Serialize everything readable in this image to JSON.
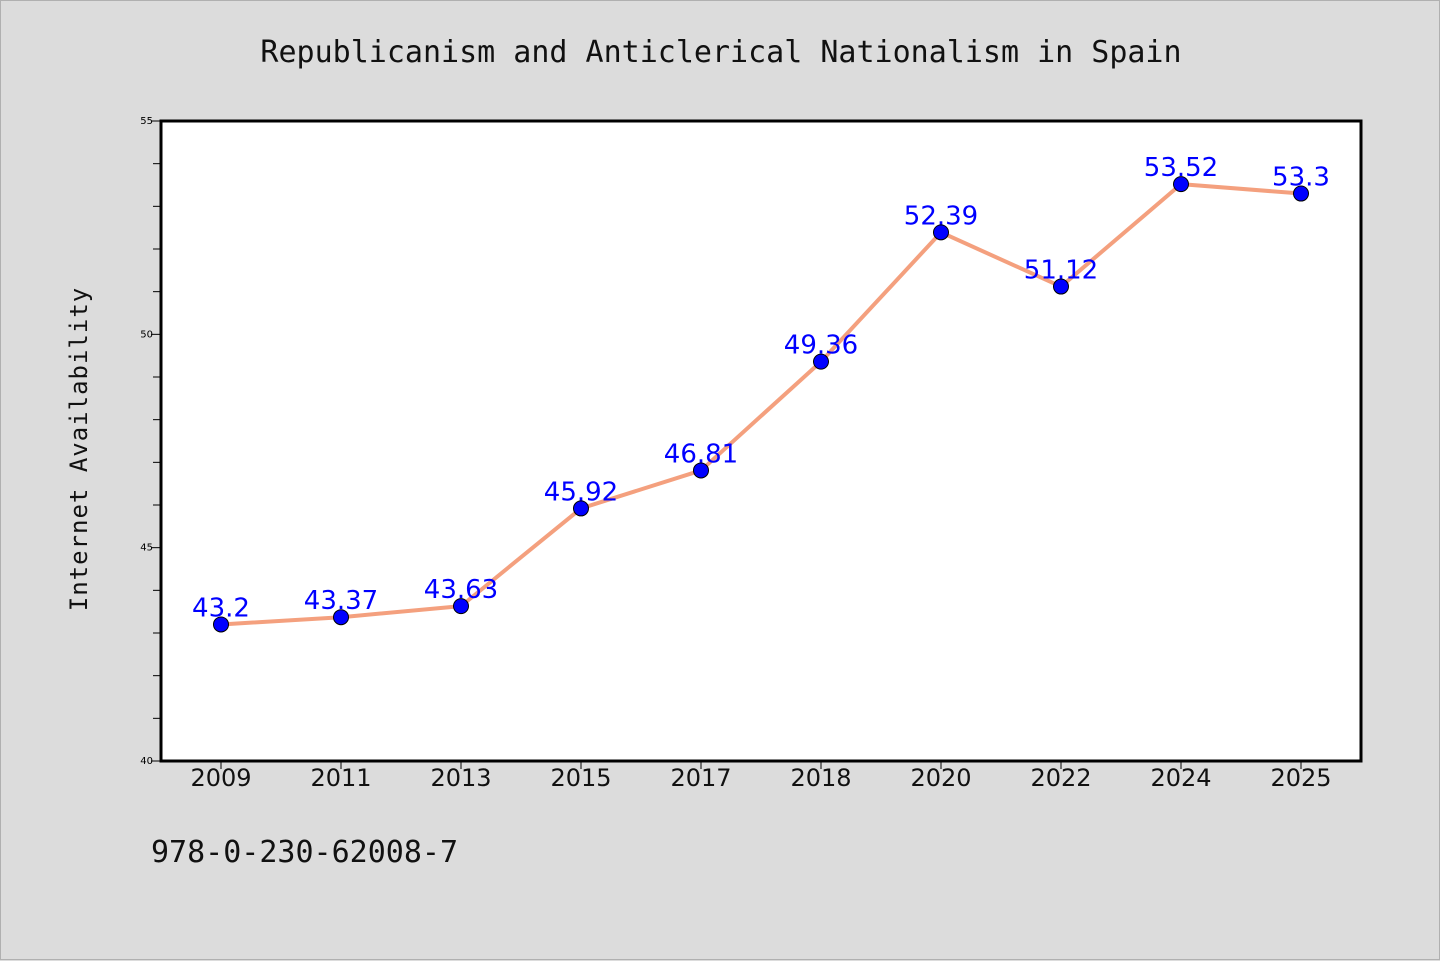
{
  "footer": {
    "code": "978-0-230-62008-7"
  },
  "colors": {
    "background": "#dcdcdc",
    "plot_background": "#ffffff",
    "line": "#f4a07e",
    "marker": "#0000ff",
    "data_label": "#0000ff"
  },
  "chart_data": {
    "type": "line",
    "title": "Republicanism and Anticlerical Nationalism in Spain",
    "xlabel": "",
    "ylabel": "Internet Availability",
    "categories": [
      "2009",
      "2011",
      "2013",
      "2015",
      "2017",
      "2018",
      "2020",
      "2022",
      "2024",
      "2025"
    ],
    "series": [
      {
        "values": [
          43.2,
          43.37,
          43.63,
          45.92,
          46.81,
          49.36,
          52.39,
          51.12,
          53.52,
          53.3
        ],
        "labels": [
          "43.2",
          "43.37",
          "43.63",
          "45.92",
          "46.81",
          "49.36",
          "52.39",
          "51.12",
          "53.52",
          "53.3"
        ]
      }
    ],
    "ylim": [
      40,
      55
    ],
    "yticks": [
      40,
      45,
      50,
      55
    ],
    "ytick_labels": [
      "40",
      "45",
      "50",
      "55"
    ],
    "minor_ytick_step": 1,
    "grid": false,
    "legend": "none"
  }
}
